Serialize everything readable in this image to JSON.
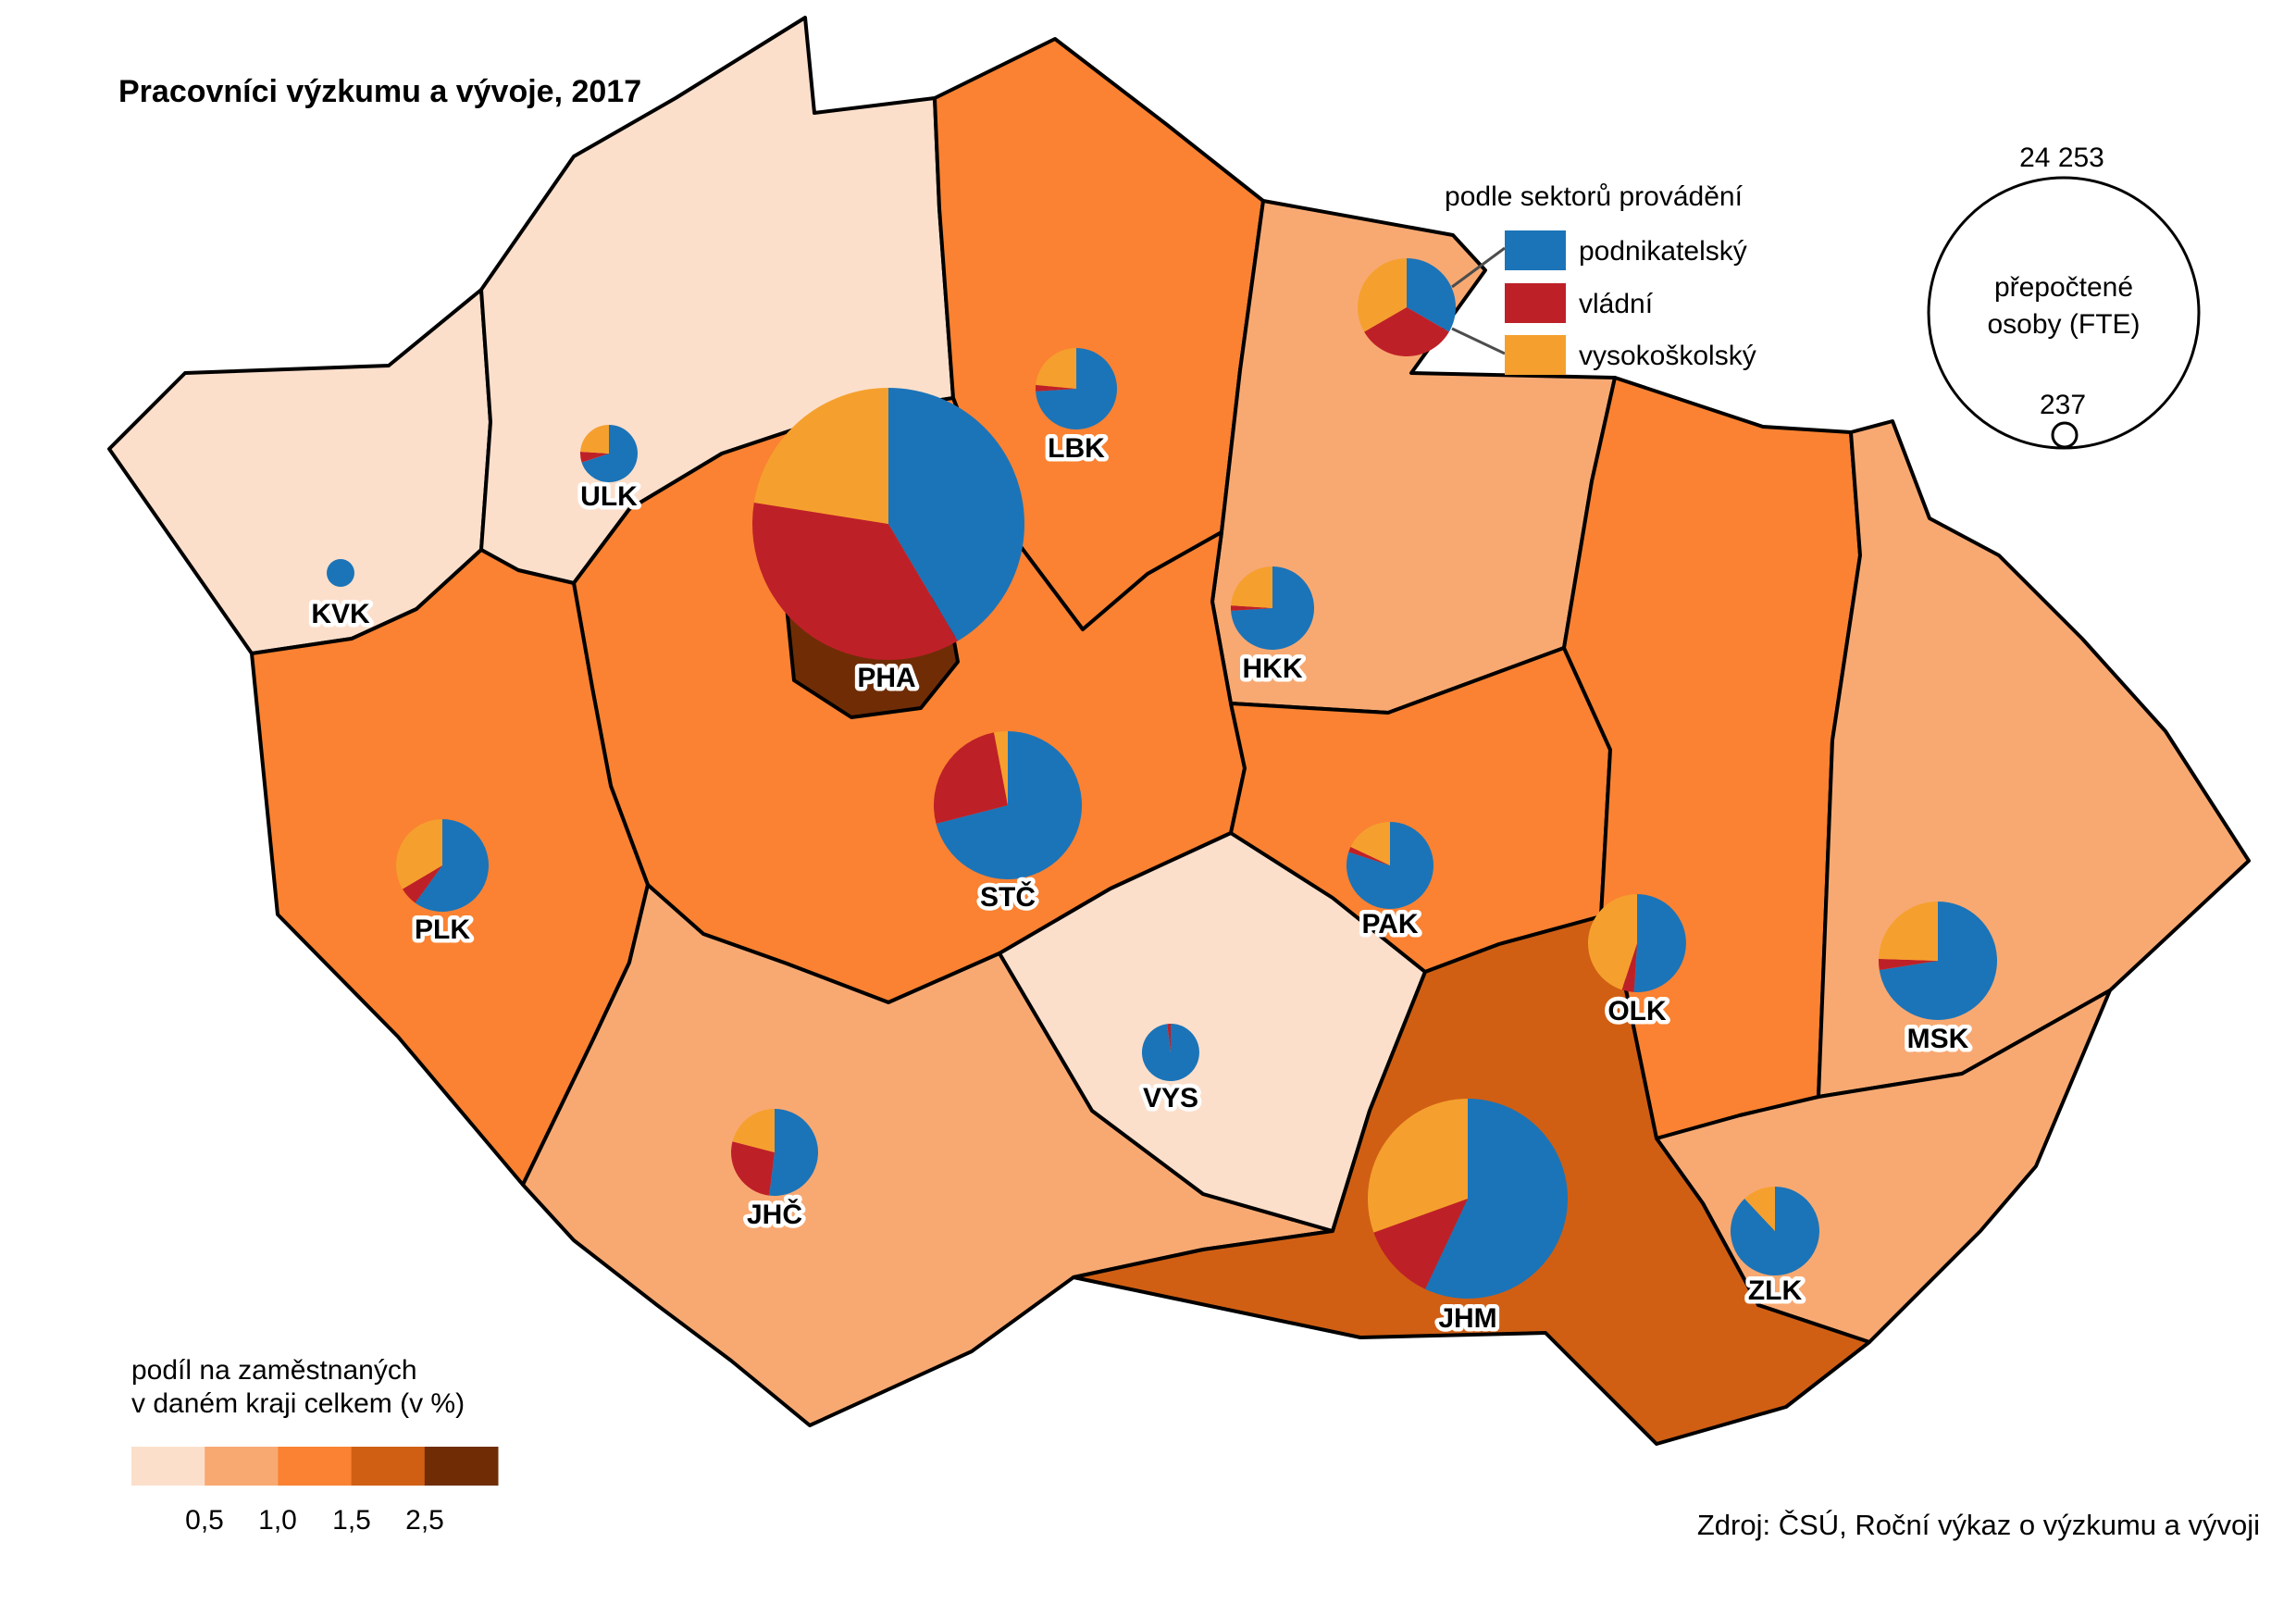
{
  "title": "Pracovníci výzkumu a vývoje, 2017",
  "source": "Zdroj: ČSÚ, Roční výkaz o výzkumu a vývoji",
  "sector_legend": {
    "title": "podle sektorů provádění",
    "items": [
      {
        "label": "podnikatelský",
        "color": "#1B74B8"
      },
      {
        "label": "vládní",
        "color": "#BE2028"
      },
      {
        "label": "vysokoškolský",
        "color": "#F5A02E"
      }
    ]
  },
  "size_legend": {
    "max_label": "24 253",
    "min_label": "237",
    "caption_line1": "přepočtené",
    "caption_line2": "osoby (FTE)"
  },
  "choropleth_legend": {
    "title_line1": "podíl na zaměstnaných",
    "title_line2": "v daném kraji celkem (v %)",
    "tick_labels": [
      "0,5",
      "1,0",
      "1,5",
      "2,5"
    ],
    "bin_colors": [
      "#FCDFCB",
      "#F8A972",
      "#FA8232",
      "#D05F14",
      "#702D05"
    ]
  },
  "chart_data": {
    "type": "map-pie",
    "title": "Pracovníci výzkumu a vývoje, 2017",
    "unit": "přepočtené osoby (FTE)",
    "size_scale": {
      "max_value": 24253,
      "max_radius_px": 147,
      "min_value": 237
    },
    "sectors": [
      "podnikatelský",
      "vládní",
      "vysokoškolský"
    ],
    "sector_colors": [
      "#1B74B8",
      "#BE2028",
      "#F5A02E"
    ],
    "share_bins_pct": [
      "<0,5",
      "0,5–1,0",
      "1,0–1,5",
      "1,5–2,5",
      ">2,5"
    ],
    "regions": [
      {
        "code": "KVK",
        "shares_pct": [
          100,
          0,
          0
        ],
        "radius_px": 15,
        "share_bin": 1,
        "pie": [
          368,
          619
        ],
        "label_pos": [
          368,
          673
        ]
      },
      {
        "code": "ULK",
        "shares_pct": [
          70,
          6,
          24
        ],
        "radius_px": 31,
        "share_bin": 1,
        "pie": [
          658,
          490
        ],
        "label_pos": [
          658,
          546
        ]
      },
      {
        "code": "LBK",
        "shares_pct": [
          74,
          2.5,
          23.5
        ],
        "radius_px": 44,
        "share_bin": 3,
        "pie": [
          1163,
          420
        ],
        "label_pos": [
          1163,
          494
        ]
      },
      {
        "code": "HKK",
        "shares_pct": [
          74,
          2,
          24
        ],
        "radius_px": 45,
        "share_bin": 2,
        "pie": [
          1375,
          657
        ],
        "label_pos": [
          1375,
          732
        ]
      },
      {
        "code": "STČ",
        "shares_pct": [
          71,
          26,
          3
        ],
        "radius_px": 80,
        "share_bin": 3,
        "pie": [
          1089,
          870
        ],
        "label_pos": [
          1089,
          979
        ]
      },
      {
        "code": "PLK",
        "shares_pct": [
          60,
          6.5,
          33.5
        ],
        "radius_px": 50,
        "share_bin": 3,
        "pie": [
          478,
          935
        ],
        "label_pos": [
          478,
          1014
        ]
      },
      {
        "code": "JHČ",
        "shares_pct": [
          52,
          27,
          21
        ],
        "radius_px": 47,
        "share_bin": 2,
        "pie": [
          837,
          1245
        ],
        "label_pos": [
          837,
          1322
        ]
      },
      {
        "code": "VYS",
        "shares_pct": [
          98,
          2,
          0
        ],
        "radius_px": 31,
        "share_bin": 1,
        "pie": [
          1265,
          1137
        ],
        "label_pos": [
          1265,
          1196
        ]
      },
      {
        "code": "PAK",
        "shares_pct": [
          80,
          2,
          18
        ],
        "radius_px": 47,
        "share_bin": 3,
        "pie": [
          1502,
          935
        ],
        "label_pos": [
          1502,
          1008
        ]
      },
      {
        "code": "OLK",
        "shares_pct": [
          51,
          4,
          45
        ],
        "radius_px": 53,
        "share_bin": 3,
        "pie": [
          1769,
          1019
        ],
        "label_pos": [
          1769,
          1102
        ]
      },
      {
        "code": "MSK",
        "shares_pct": [
          72.5,
          3,
          24.5
        ],
        "radius_px": 64,
        "share_bin": 2,
        "pie": [
          2094,
          1038
        ],
        "label_pos": [
          2094,
          1132
        ]
      },
      {
        "code": "ZLK",
        "shares_pct": [
          88,
          0,
          12
        ],
        "radius_px": 48,
        "share_bin": 2,
        "pie": [
          1918,
          1330
        ],
        "label_pos": [
          1918,
          1404
        ]
      },
      {
        "code": "JHM",
        "shares_pct": [
          57,
          12.5,
          30.5
        ],
        "radius_px": 108,
        "share_bin": 4,
        "pie": [
          1586,
          1295
        ],
        "label_pos": [
          1586,
          1434
        ]
      },
      {
        "code": "PHA",
        "shares_pct": [
          41.5,
          36,
          22.5
        ],
        "radius_px": 147,
        "share_bin": 5,
        "pie": [
          960,
          566
        ],
        "label_pos": [
          958,
          742
        ]
      }
    ]
  }
}
